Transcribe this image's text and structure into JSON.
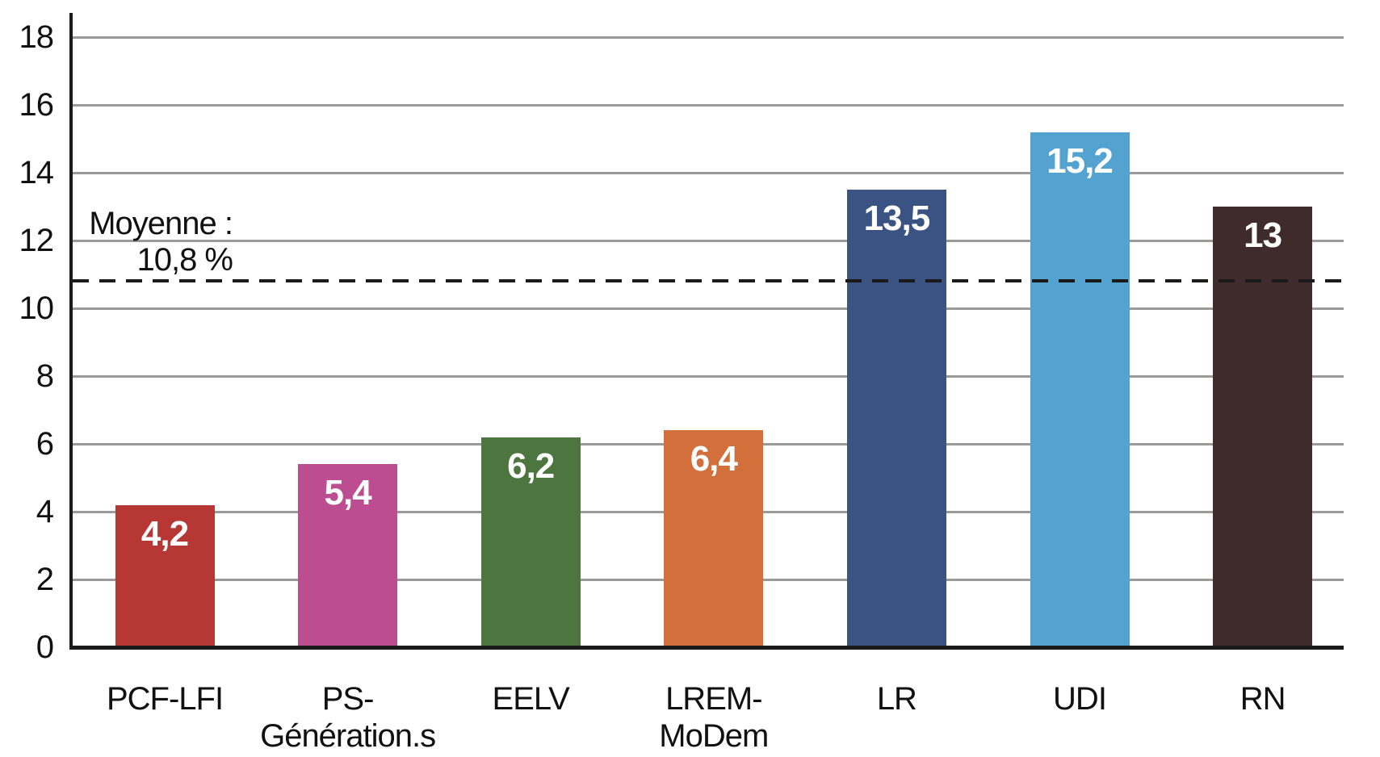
{
  "chart_data": {
    "type": "bar",
    "title": "",
    "unit": "%",
    "categories": [
      "PCF-LFI",
      "PS-Génération.s",
      "EELV",
      "LREM-MoDem",
      "LR",
      "UDI",
      "RN"
    ],
    "values": [
      4.2,
      5.4,
      6.2,
      6.4,
      13.5,
      15.2,
      13
    ],
    "bars": [
      {
        "label_lines": [
          "PCF-LFI"
        ],
        "value": 4.2,
        "display_value": "4,2",
        "color": "#b63734"
      },
      {
        "label_lines": [
          "PS-",
          "Génération.s"
        ],
        "value": 5.4,
        "display_value": "5,4",
        "color": "#bb4d90"
      },
      {
        "label_lines": [
          "EELV"
        ],
        "value": 6.2,
        "display_value": "6,2",
        "color": "#4d7540"
      },
      {
        "label_lines": [
          "LREM-",
          "MoDem"
        ],
        "value": 6.4,
        "display_value": "6,4",
        "color": "#d36f3b"
      },
      {
        "label_lines": [
          "LR"
        ],
        "value": 13.5,
        "display_value": "13,5",
        "color": "#3a5383"
      },
      {
        "label_lines": [
          "UDI"
        ],
        "value": 15.2,
        "display_value": "15,2",
        "color": "#54a2d0"
      },
      {
        "label_lines": [
          "RN"
        ],
        "value": 13,
        "display_value": "13",
        "color": "#402b2c"
      }
    ],
    "y_axis": {
      "min": 0,
      "max": 18,
      "tick_step": 2,
      "tick_labels": [
        "0",
        "2",
        "4",
        "6",
        "8",
        "10",
        "12",
        "14",
        "16",
        "18"
      ]
    },
    "average_line": {
      "value": 10.8,
      "label_line1": "Moyenne :",
      "label_line2": "10,8 %"
    },
    "grid": true,
    "legend": false,
    "colors": {
      "grid": "#9a9a9a",
      "axis": "#1a1a1a",
      "text": "#111111",
      "bar_value_text": "#ffffff",
      "background": "#ffffff"
    }
  }
}
